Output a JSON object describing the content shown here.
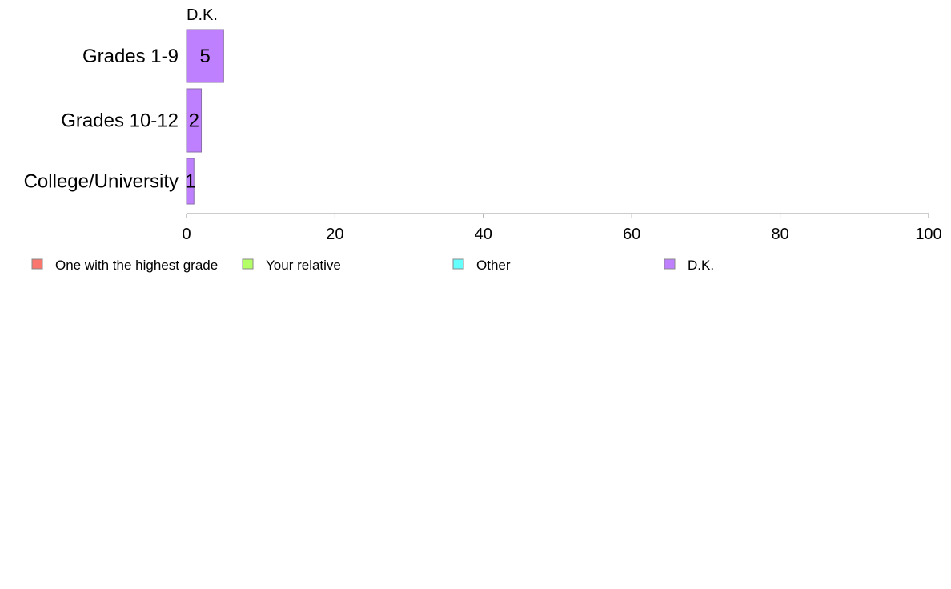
{
  "chart_data": {
    "type": "bar",
    "orientation": "horizontal",
    "stacked": true,
    "categories": [
      "Grades 1-9",
      "Grades 10-12",
      "College/University"
    ],
    "series": [
      {
        "name": "One with the highest grade",
        "values": [
          0,
          0,
          0
        ],
        "color": "#f8766d"
      },
      {
        "name": "Your relative",
        "values": [
          0,
          0,
          0
        ],
        "color": "#b3ff66"
      },
      {
        "name": "Other",
        "values": [
          0,
          0,
          0
        ],
        "color": "#66ffff"
      },
      {
        "name": "D.K.",
        "values": [
          5,
          2,
          1
        ],
        "color": "#bf80ff"
      }
    ],
    "series_header": "D.K.",
    "xlim": [
      0,
      100
    ],
    "xticks": [
      0,
      20,
      40,
      60,
      80,
      100
    ],
    "xlabel": "",
    "ylabel": "",
    "title": "",
    "grid": false,
    "legend": {
      "position": "bottom",
      "labels": [
        "One with the highest grade",
        "Your relative",
        "Other",
        "D.K."
      ]
    }
  }
}
